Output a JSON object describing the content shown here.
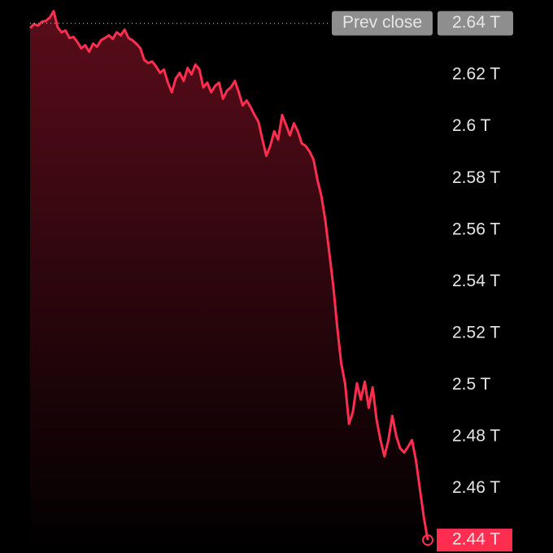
{
  "chart_data": {
    "type": "area",
    "values": [
      2.6381,
      2.6397,
      2.6391,
      2.6406,
      2.6409,
      2.6422,
      2.6447,
      2.6384,
      2.6365,
      2.6372,
      2.6343,
      2.6347,
      2.6328,
      2.6303,
      2.6315,
      2.629,
      2.6321,
      2.6309,
      2.6334,
      2.6343,
      2.6353,
      2.634,
      2.6365,
      2.6353,
      2.6375,
      2.6343,
      2.6334,
      2.6321,
      2.6303,
      2.6258,
      2.6246,
      2.6252,
      2.6233,
      2.6208,
      2.6221,
      2.617,
      2.6133,
      2.6186,
      2.6208,
      2.6177,
      2.6227,
      2.6202,
      2.624,
      2.6221,
      2.6152,
      2.617,
      2.6133,
      2.6158,
      2.617,
      2.6108,
      2.6139,
      2.6152,
      2.6177,
      2.6133,
      2.6082,
      2.6101,
      2.6076,
      2.6045,
      2.6019,
      2.595,
      2.5887,
      2.5925,
      2.5982,
      2.595,
      2.6045,
      2.6007,
      2.5966,
      2.6013,
      2.5982,
      2.5935,
      2.5925,
      2.5903,
      2.5872,
      2.5793,
      2.573,
      2.5636,
      2.551,
      2.5384,
      2.5227,
      2.5085,
      2.5007,
      2.485,
      2.4897,
      2.5007,
      2.4944,
      2.5013,
      2.4912,
      2.4991,
      2.4865,
      2.4787,
      2.4724,
      2.4787,
      2.4881,
      2.4802,
      2.4755,
      2.4739,
      2.4761,
      2.4787,
      2.4708,
      2.4598,
      2.4488,
      2.44
    ],
    "color": "#ff2d4f",
    "ylim": [
      2.435,
      2.649
    ],
    "yticks": [
      {
        "value": 2.46,
        "label": "2.46 T"
      },
      {
        "value": 2.48,
        "label": "2.48 T"
      },
      {
        "value": 2.5,
        "label": "2.5 T"
      },
      {
        "value": 2.52,
        "label": "2.52 T"
      },
      {
        "value": 2.54,
        "label": "2.54 T"
      },
      {
        "value": 2.56,
        "label": "2.56 T"
      },
      {
        "value": 2.58,
        "label": "2.58 T"
      },
      {
        "value": 2.6,
        "label": "2.6 T"
      },
      {
        "value": 2.62,
        "label": "2.62 T"
      }
    ],
    "prev_close_name": "Prev close",
    "prev_close": {
      "value": 2.64,
      "label": "2.64 T"
    },
    "current": {
      "value": 2.44,
      "label": "2.44 T"
    }
  }
}
